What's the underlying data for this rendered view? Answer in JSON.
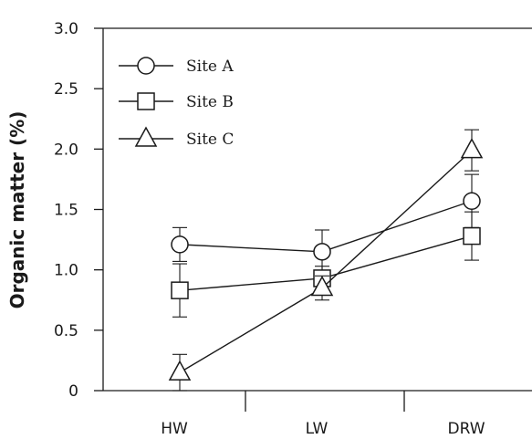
{
  "chart_data": {
    "type": "line",
    "title": "",
    "xlabel": "",
    "ylabel": "Organic matter (%)",
    "categories": [
      "HW",
      "LW",
      "DRW"
    ],
    "ylim": [
      0,
      3.0
    ],
    "yticks": [
      "0",
      "0.5",
      "1.0",
      "1.5",
      "2.0",
      "2.5",
      "3.0"
    ],
    "legend_position": "top-left",
    "grid": false,
    "series": [
      {
        "name": "Site A",
        "marker": "circle",
        "values": [
          1.21,
          1.15,
          1.57
        ],
        "errors": [
          0.14,
          0.18,
          0.22
        ]
      },
      {
        "name": "Site B",
        "marker": "square",
        "values": [
          0.83,
          0.93,
          1.28
        ],
        "errors": [
          0.22,
          0.1,
          0.2
        ]
      },
      {
        "name": "Site C",
        "marker": "triangle",
        "values": [
          0.15,
          0.85,
          1.99
        ],
        "errors": [
          0.15,
          0.1,
          0.17
        ]
      }
    ]
  }
}
